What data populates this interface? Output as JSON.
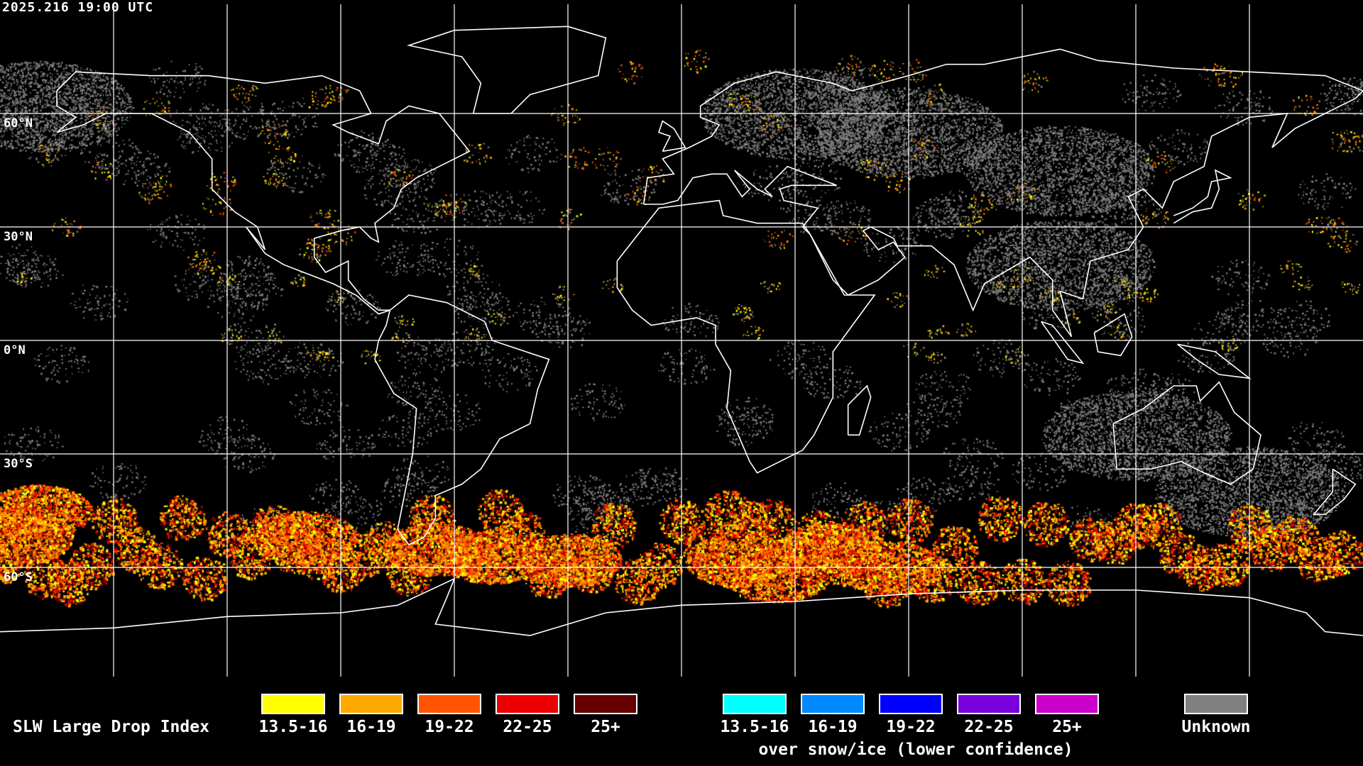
{
  "timestamp": "2025.216 19:00 UTC",
  "lat_labels": [
    "60°N",
    "30°N",
    "0°N",
    "30°S",
    "60°S"
  ],
  "legend": {
    "title": "SLW Large Drop Index",
    "main": [
      {
        "label": "13.5-16",
        "color": "#ffff00"
      },
      {
        "label": "16-19",
        "color": "#ffaa00"
      },
      {
        "label": "19-22",
        "color": "#ff5500"
      },
      {
        "label": "22-25",
        "color": "#ee0000"
      },
      {
        "label": "25+",
        "color": "#660000"
      }
    ],
    "snow": [
      {
        "label": "13.5-16",
        "color": "#00ffff"
      },
      {
        "label": "16-19",
        "color": "#0088ff"
      },
      {
        "label": "19-22",
        "color": "#0000ff"
      },
      {
        "label": "22-25",
        "color": "#7700dd"
      },
      {
        "label": "25+",
        "color": "#cc00cc"
      }
    ],
    "snow_caption": "over snow/ice (lower confidence)",
    "unknown": {
      "label": "Unknown",
      "color": "#808080"
    }
  },
  "map": {
    "projection": "equirectangular",
    "grid_spacing_deg": 30,
    "coastline_color": "#ffffff",
    "grid_color": "#ffffff",
    "background": "#000000"
  }
}
